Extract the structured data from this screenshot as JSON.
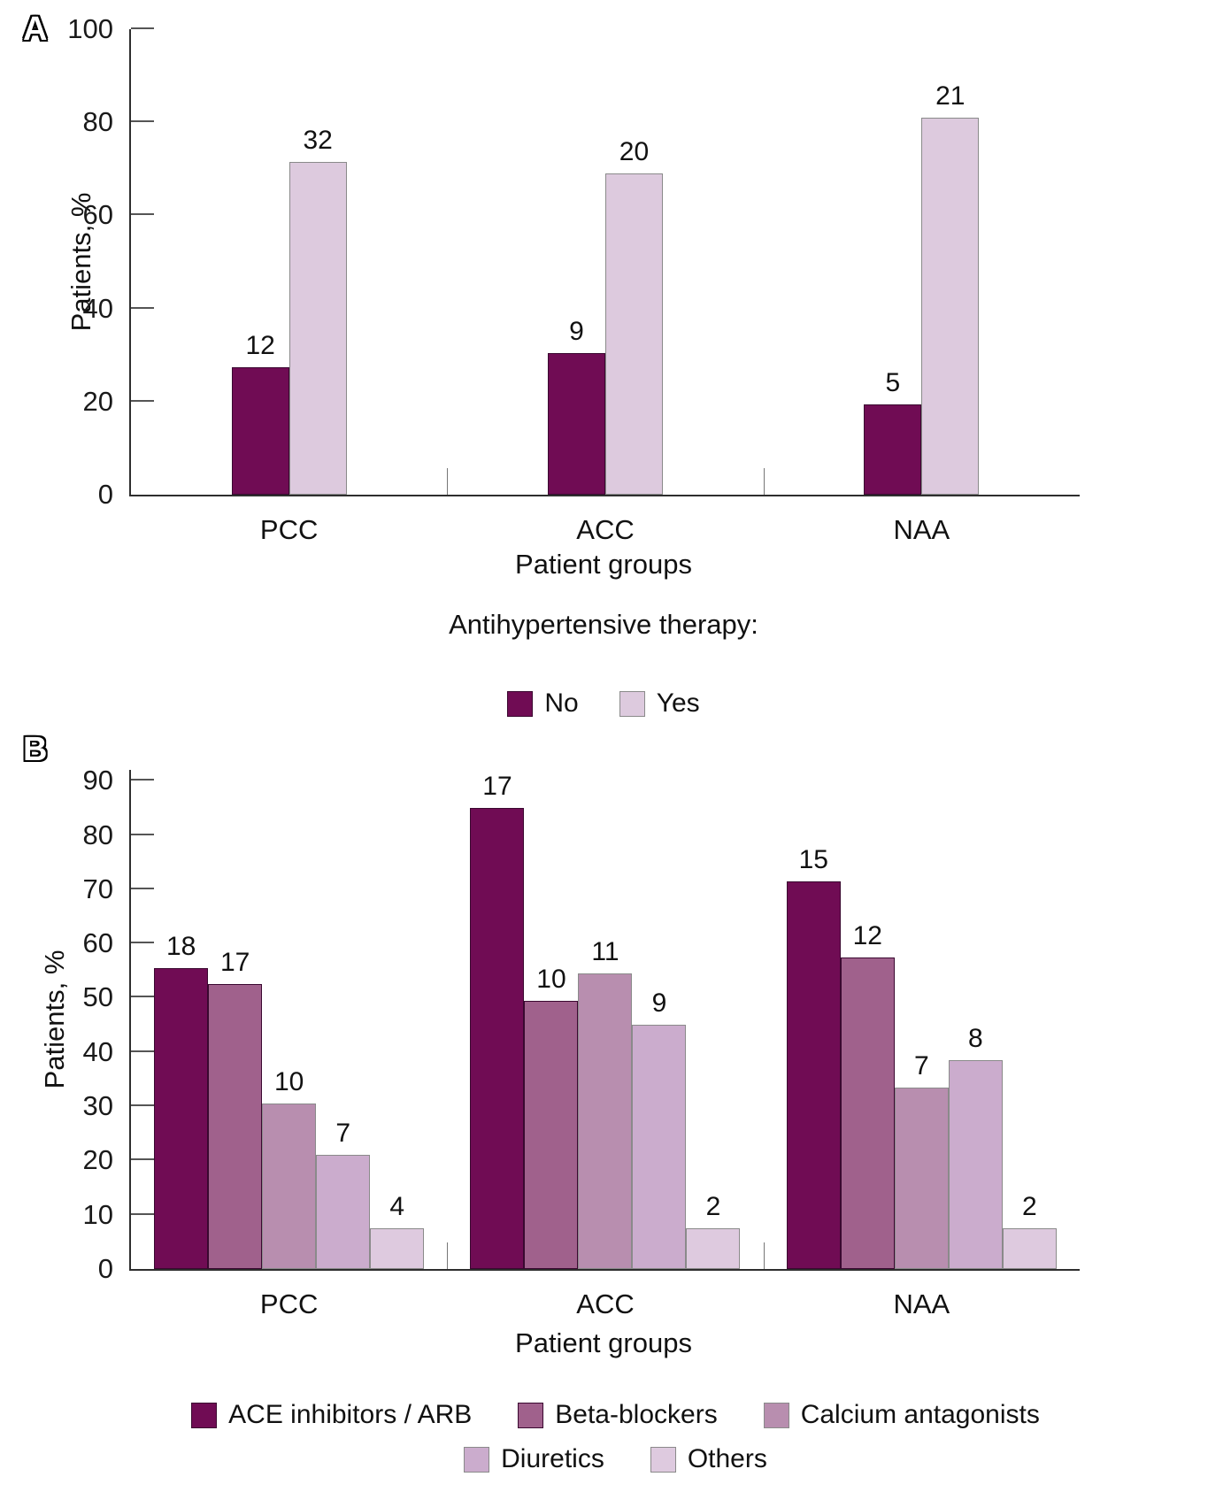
{
  "chart_data": [
    {
      "panel": "A",
      "type": "bar",
      "categories": [
        "PCC",
        "ACC",
        "NAA"
      ],
      "series": [
        {
          "name": "No",
          "color": "#700C54",
          "values": [
            12,
            9,
            5
          ],
          "bar_heights_pct": [
            27.3,
            30.5,
            19.3
          ]
        },
        {
          "name": "Yes",
          "color": "#DDCADE",
          "values": [
            32,
            20,
            21
          ],
          "bar_heights_pct": [
            71.5,
            69,
            81
          ]
        }
      ],
      "ylabel": "Patients, %",
      "xlabel": "Patient groups",
      "legend_title": "Antihypertensive therapy:",
      "legend_position": "bottom",
      "ylim": [
        0,
        100
      ],
      "yticks": [
        0,
        20,
        40,
        60,
        80,
        100
      ],
      "grid": false,
      "value_labels_above_bars": true
    },
    {
      "panel": "B",
      "type": "bar",
      "categories": [
        "PCC",
        "ACC",
        "NAA"
      ],
      "series": [
        {
          "name": "ACE inhibitors / ARB",
          "color": "#700C54",
          "values": [
            18,
            17,
            15
          ],
          "bar_heights_pct": [
            55.5,
            85,
            71.5
          ]
        },
        {
          "name": "Beta-blockers",
          "color": "#A0618C",
          "values": [
            17,
            10,
            12
          ],
          "bar_heights_pct": [
            52.5,
            49.5,
            57.5
          ]
        },
        {
          "name": "Calcium antagonists",
          "color": "#B88EAF",
          "values": [
            10,
            11,
            7
          ],
          "bar_heights_pct": [
            30.5,
            54.5,
            33.5
          ]
        },
        {
          "name": "Diuretics",
          "color": "#CBACCD",
          "values": [
            7,
            9,
            8
          ],
          "bar_heights_pct": [
            21,
            45,
            38.5
          ]
        },
        {
          "name": "Others",
          "color": "#DECADF",
          "values": [
            4,
            2,
            2
          ],
          "bar_heights_pct": [
            7.5,
            7.5,
            7.5
          ]
        }
      ],
      "ylabel": "Patients, %",
      "xlabel": "Patient groups",
      "legend_position": "bottom",
      "ylim": [
        0,
        90
      ],
      "yticks": [
        0,
        10,
        20,
        30,
        40,
        50,
        60,
        70,
        80,
        90
      ],
      "grid": false,
      "value_labels_above_bars": true
    }
  ]
}
